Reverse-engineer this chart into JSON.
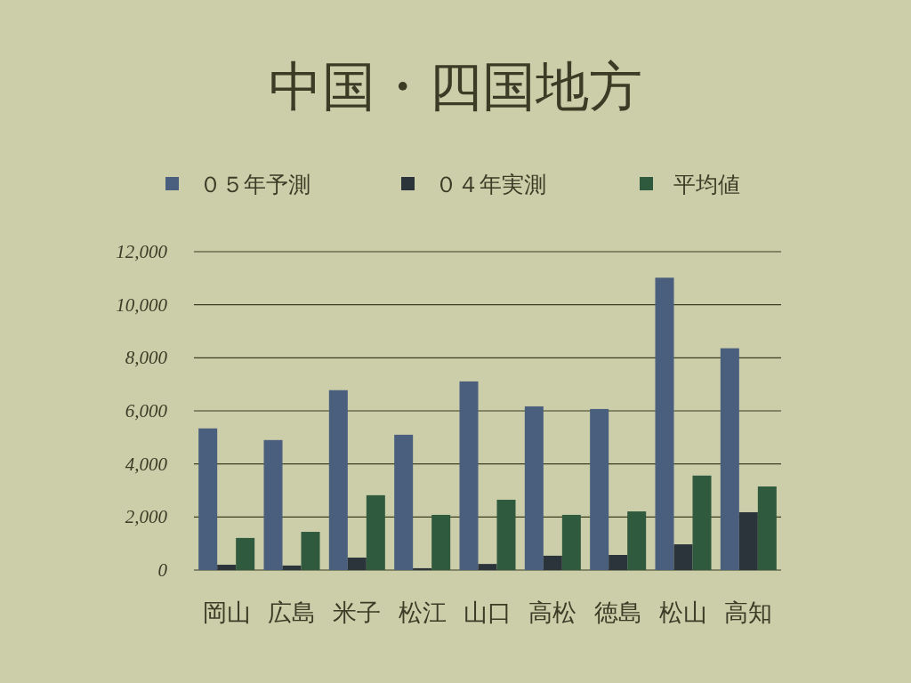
{
  "chart_data": {
    "type": "bar",
    "title": "中国・四国地方",
    "categories": [
      "岡山",
      "広島",
      "米子",
      "松江",
      "山口",
      "高松",
      "徳島",
      "松山",
      "高知"
    ],
    "series": [
      {
        "name": "０５年予測",
        "color": "#4a5f7e",
        "values": [
          5340,
          4900,
          6780,
          5100,
          7110,
          6170,
          6070,
          11020,
          8360
        ]
      },
      {
        "name": "０４年実測",
        "color": "#2b333b",
        "values": [
          200,
          170,
          470,
          70,
          230,
          540,
          570,
          970,
          2180
        ]
      },
      {
        "name": "平均値",
        "color": "#2f5a3e",
        "values": [
          1210,
          1440,
          2820,
          2080,
          2650,
          2080,
          2210,
          3560,
          3150
        ]
      }
    ],
    "ylim": [
      0,
      12000
    ],
    "yticks": [
      {
        "value": 0,
        "label": "0"
      },
      {
        "value": 2000,
        "label": "2,000"
      },
      {
        "value": 4000,
        "label": "4,000"
      },
      {
        "value": 6000,
        "label": "6,000"
      },
      {
        "value": 8000,
        "label": "8,000"
      },
      {
        "value": 10000,
        "label": "10,000"
      },
      {
        "value": 12000,
        "label": "12,000"
      }
    ],
    "grid": "y",
    "legend": "top"
  }
}
